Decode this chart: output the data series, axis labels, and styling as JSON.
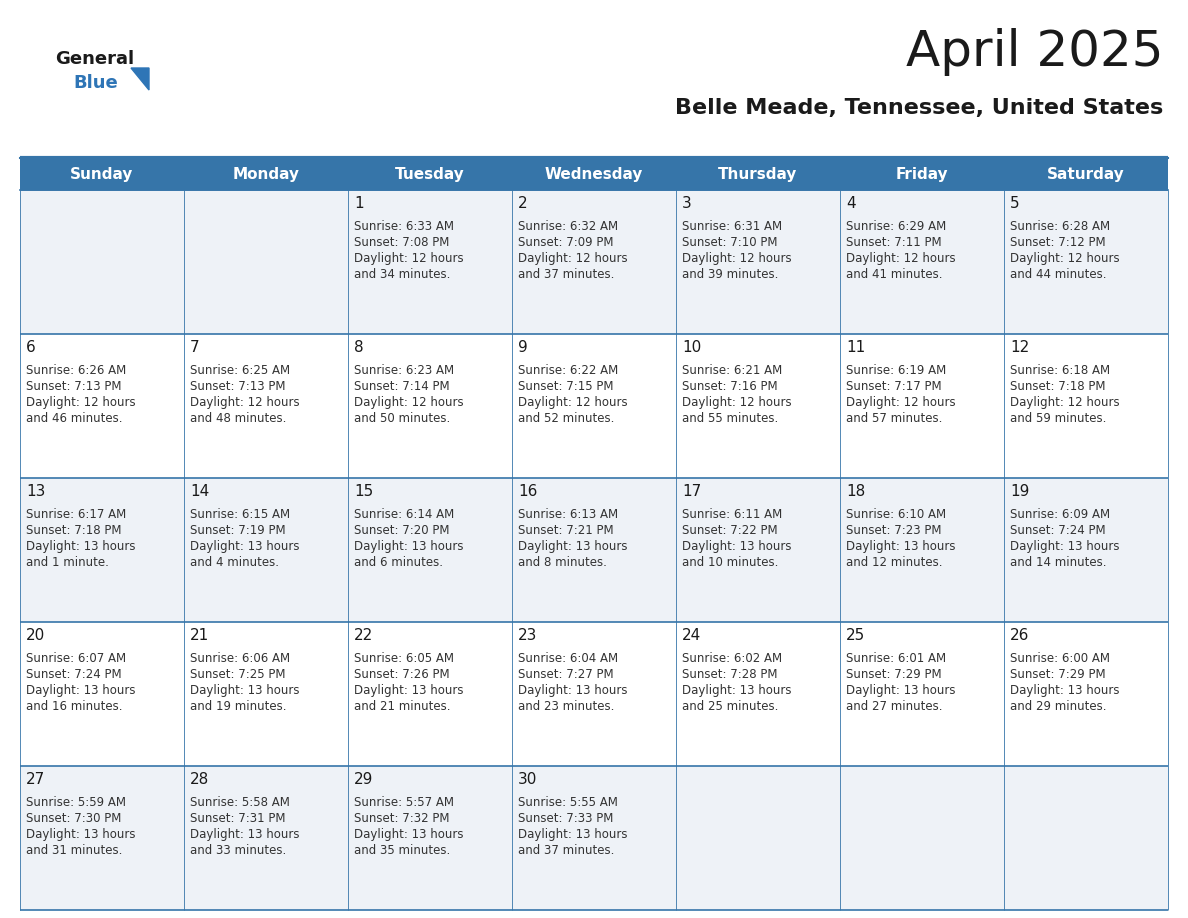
{
  "title": "April 2025",
  "subtitle": "Belle Meade, Tennessee, United States",
  "header_bg": "#3675a9",
  "header_text_color": "#ffffff",
  "days_of_week": [
    "Sunday",
    "Monday",
    "Tuesday",
    "Wednesday",
    "Thursday",
    "Friday",
    "Saturday"
  ],
  "row_bg_light": "#eef2f7",
  "row_bg_white": "#ffffff",
  "grid_color": "#3675a9",
  "text_color": "#333333",
  "calendar_data": [
    [
      {
        "day": "",
        "sunrise": "",
        "sunset": "",
        "daylight": ""
      },
      {
        "day": "",
        "sunrise": "",
        "sunset": "",
        "daylight": ""
      },
      {
        "day": "1",
        "sunrise": "6:33 AM",
        "sunset": "7:08 PM",
        "daylight": "12 hours",
        "daylight2": "and 34 minutes."
      },
      {
        "day": "2",
        "sunrise": "6:32 AM",
        "sunset": "7:09 PM",
        "daylight": "12 hours",
        "daylight2": "and 37 minutes."
      },
      {
        "day": "3",
        "sunrise": "6:31 AM",
        "sunset": "7:10 PM",
        "daylight": "12 hours",
        "daylight2": "and 39 minutes."
      },
      {
        "day": "4",
        "sunrise": "6:29 AM",
        "sunset": "7:11 PM",
        "daylight": "12 hours",
        "daylight2": "and 41 minutes."
      },
      {
        "day": "5",
        "sunrise": "6:28 AM",
        "sunset": "7:12 PM",
        "daylight": "12 hours",
        "daylight2": "and 44 minutes."
      }
    ],
    [
      {
        "day": "6",
        "sunrise": "6:26 AM",
        "sunset": "7:13 PM",
        "daylight": "12 hours",
        "daylight2": "and 46 minutes."
      },
      {
        "day": "7",
        "sunrise": "6:25 AM",
        "sunset": "7:13 PM",
        "daylight": "12 hours",
        "daylight2": "and 48 minutes."
      },
      {
        "day": "8",
        "sunrise": "6:23 AM",
        "sunset": "7:14 PM",
        "daylight": "12 hours",
        "daylight2": "and 50 minutes."
      },
      {
        "day": "9",
        "sunrise": "6:22 AM",
        "sunset": "7:15 PM",
        "daylight": "12 hours",
        "daylight2": "and 52 minutes."
      },
      {
        "day": "10",
        "sunrise": "6:21 AM",
        "sunset": "7:16 PM",
        "daylight": "12 hours",
        "daylight2": "and 55 minutes."
      },
      {
        "day": "11",
        "sunrise": "6:19 AM",
        "sunset": "7:17 PM",
        "daylight": "12 hours",
        "daylight2": "and 57 minutes."
      },
      {
        "day": "12",
        "sunrise": "6:18 AM",
        "sunset": "7:18 PM",
        "daylight": "12 hours",
        "daylight2": "and 59 minutes."
      }
    ],
    [
      {
        "day": "13",
        "sunrise": "6:17 AM",
        "sunset": "7:18 PM",
        "daylight": "13 hours",
        "daylight2": "and 1 minute."
      },
      {
        "day": "14",
        "sunrise": "6:15 AM",
        "sunset": "7:19 PM",
        "daylight": "13 hours",
        "daylight2": "and 4 minutes."
      },
      {
        "day": "15",
        "sunrise": "6:14 AM",
        "sunset": "7:20 PM",
        "daylight": "13 hours",
        "daylight2": "and 6 minutes."
      },
      {
        "day": "16",
        "sunrise": "6:13 AM",
        "sunset": "7:21 PM",
        "daylight": "13 hours",
        "daylight2": "and 8 minutes."
      },
      {
        "day": "17",
        "sunrise": "6:11 AM",
        "sunset": "7:22 PM",
        "daylight": "13 hours",
        "daylight2": "and 10 minutes."
      },
      {
        "day": "18",
        "sunrise": "6:10 AM",
        "sunset": "7:23 PM",
        "daylight": "13 hours",
        "daylight2": "and 12 minutes."
      },
      {
        "day": "19",
        "sunrise": "6:09 AM",
        "sunset": "7:24 PM",
        "daylight": "13 hours",
        "daylight2": "and 14 minutes."
      }
    ],
    [
      {
        "day": "20",
        "sunrise": "6:07 AM",
        "sunset": "7:24 PM",
        "daylight": "13 hours",
        "daylight2": "and 16 minutes."
      },
      {
        "day": "21",
        "sunrise": "6:06 AM",
        "sunset": "7:25 PM",
        "daylight": "13 hours",
        "daylight2": "and 19 minutes."
      },
      {
        "day": "22",
        "sunrise": "6:05 AM",
        "sunset": "7:26 PM",
        "daylight": "13 hours",
        "daylight2": "and 21 minutes."
      },
      {
        "day": "23",
        "sunrise": "6:04 AM",
        "sunset": "7:27 PM",
        "daylight": "13 hours",
        "daylight2": "and 23 minutes."
      },
      {
        "day": "24",
        "sunrise": "6:02 AM",
        "sunset": "7:28 PM",
        "daylight": "13 hours",
        "daylight2": "and 25 minutes."
      },
      {
        "day": "25",
        "sunrise": "6:01 AM",
        "sunset": "7:29 PM",
        "daylight": "13 hours",
        "daylight2": "and 27 minutes."
      },
      {
        "day": "26",
        "sunrise": "6:00 AM",
        "sunset": "7:29 PM",
        "daylight": "13 hours",
        "daylight2": "and 29 minutes."
      }
    ],
    [
      {
        "day": "27",
        "sunrise": "5:59 AM",
        "sunset": "7:30 PM",
        "daylight": "13 hours",
        "daylight2": "and 31 minutes."
      },
      {
        "day": "28",
        "sunrise": "5:58 AM",
        "sunset": "7:31 PM",
        "daylight": "13 hours",
        "daylight2": "and 33 minutes."
      },
      {
        "day": "29",
        "sunrise": "5:57 AM",
        "sunset": "7:32 PM",
        "daylight": "13 hours",
        "daylight2": "and 35 minutes."
      },
      {
        "day": "30",
        "sunrise": "5:55 AM",
        "sunset": "7:33 PM",
        "daylight": "13 hours",
        "daylight2": "and 37 minutes."
      },
      {
        "day": "",
        "sunrise": "",
        "sunset": "",
        "daylight": "",
        "daylight2": ""
      },
      {
        "day": "",
        "sunrise": "",
        "sunset": "",
        "daylight": "",
        "daylight2": ""
      },
      {
        "day": "",
        "sunrise": "",
        "sunset": "",
        "daylight": "",
        "daylight2": ""
      }
    ]
  ],
  "logo_triangle_color": "#2e75b6",
  "title_fontsize": 36,
  "subtitle_fontsize": 16,
  "dayname_fontsize": 11,
  "cell_day_fontsize": 11,
  "cell_text_fontsize": 8.5
}
